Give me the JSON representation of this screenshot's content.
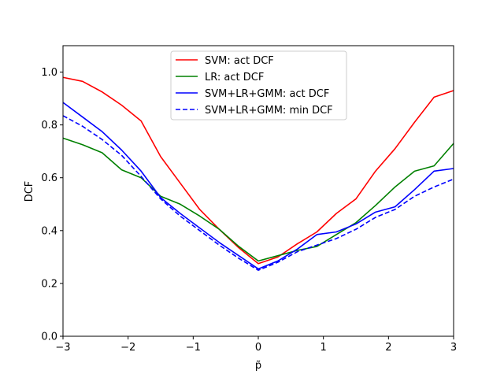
{
  "chart_data": {
    "type": "line",
    "xlabel": "p̃",
    "ylabel": "DCF",
    "xlim": [
      -3,
      3
    ],
    "ylim": [
      0,
      1.1
    ],
    "xticks": [
      -3,
      -2,
      -1,
      0,
      1,
      2,
      3
    ],
    "xtick_labels": [
      "−3",
      "−2",
      "−1",
      "0",
      "1",
      "2",
      "3"
    ],
    "yticks": [
      0.0,
      0.2,
      0.4,
      0.6,
      0.8,
      1.0
    ],
    "ytick_labels": [
      "0.0",
      "0.2",
      "0.4",
      "0.6",
      "0.8",
      "1.0"
    ],
    "grid": false,
    "legend_position": "upper-center",
    "x": [
      -3.0,
      -2.7,
      -2.4,
      -2.1,
      -1.8,
      -1.5,
      -1.2,
      -0.9,
      -0.6,
      -0.3,
      0.0,
      0.3,
      0.6,
      0.9,
      1.2,
      1.5,
      1.8,
      2.1,
      2.4,
      2.7,
      3.0
    ],
    "series": [
      {
        "name": "SVM: act DCF",
        "color": "#ff0000",
        "dash": "solid",
        "values": [
          0.98,
          0.965,
          0.925,
          0.875,
          0.815,
          0.68,
          0.58,
          0.48,
          0.405,
          0.335,
          0.275,
          0.3,
          0.35,
          0.395,
          0.465,
          0.52,
          0.625,
          0.71,
          0.81,
          0.905,
          0.93
        ]
      },
      {
        "name": "LR: act DCF",
        "color": "#008000",
        "dash": "solid",
        "values": [
          0.75,
          0.725,
          0.695,
          0.63,
          0.6,
          0.53,
          0.5,
          0.455,
          0.405,
          0.34,
          0.285,
          0.305,
          0.325,
          0.34,
          0.385,
          0.43,
          0.495,
          0.565,
          0.625,
          0.645,
          0.73
        ]
      },
      {
        "name": "SVM+LR+GMM: act DCF",
        "color": "#0000ff",
        "dash": "solid",
        "values": [
          0.885,
          0.83,
          0.775,
          0.705,
          0.625,
          0.525,
          0.465,
          0.41,
          0.355,
          0.305,
          0.255,
          0.285,
          0.33,
          0.385,
          0.395,
          0.425,
          0.47,
          0.49,
          0.555,
          0.625,
          0.635
        ]
      },
      {
        "name": "SVM+LR+GMM: min DCF",
        "color": "#0000ff",
        "dash": "dashed",
        "values": [
          0.835,
          0.795,
          0.745,
          0.685,
          0.605,
          0.52,
          0.455,
          0.4,
          0.345,
          0.295,
          0.25,
          0.28,
          0.32,
          0.345,
          0.37,
          0.405,
          0.45,
          0.48,
          0.53,
          0.565,
          0.595
        ]
      }
    ]
  }
}
